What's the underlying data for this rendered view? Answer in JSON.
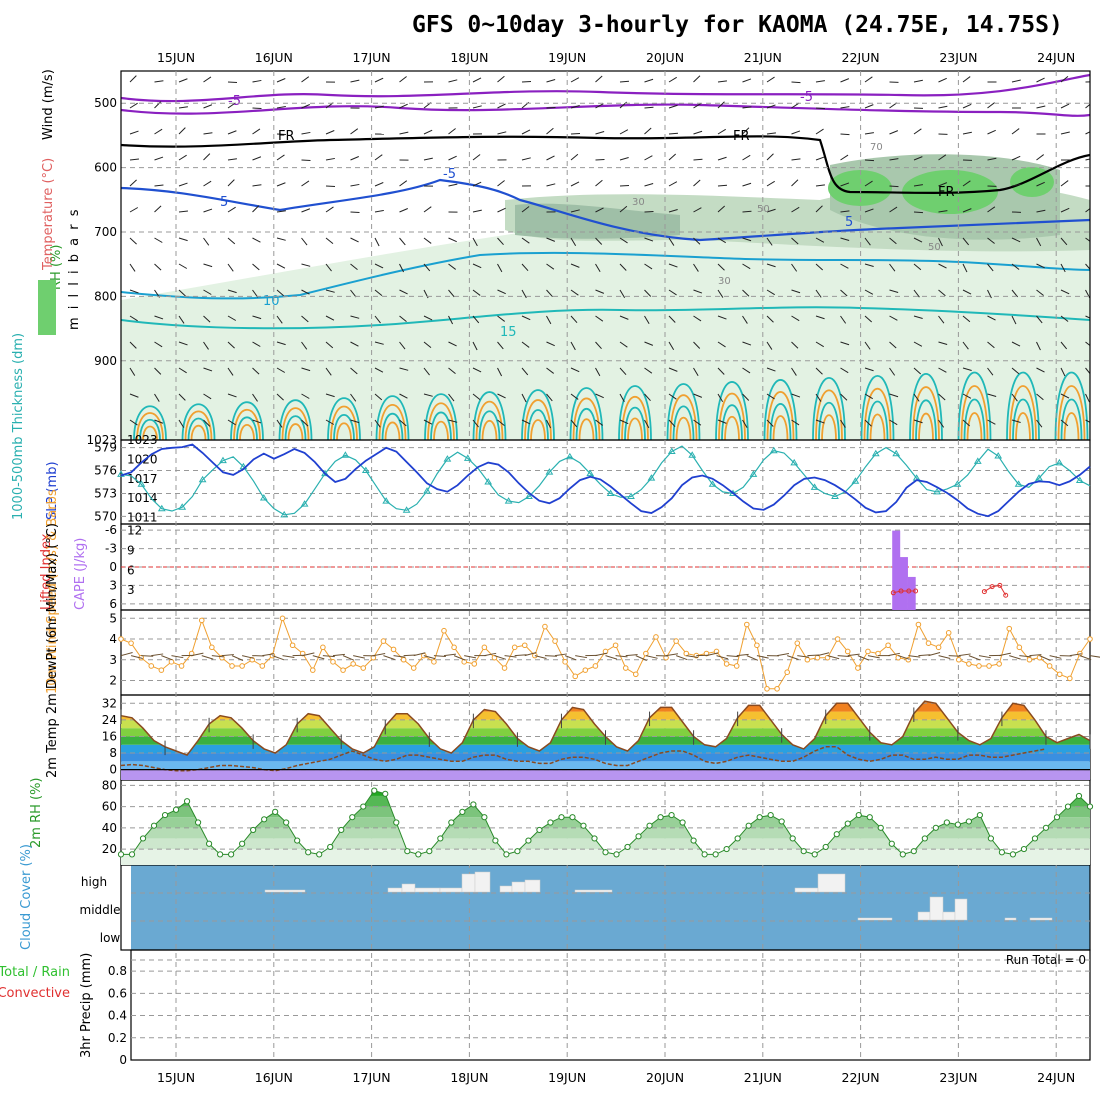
{
  "title": "GFS 0~10day 3-hourly for KAOMA (24.75E, 14.75S)",
  "colors": {
    "temperature": "#e05050",
    "wind": "#000000",
    "rh_label": "#2a9a2a",
    "thickness": "#2ab0b0",
    "slp": "#2040d0",
    "lifted_index": "#e03030",
    "cape": "#b070f0",
    "wind10m": "#f0a030",
    "temp_band": "#f5b030",
    "cloud_bg": "#6aa9d2",
    "precip_total": "#30c030",
    "precip_conv": "#e03030"
  },
  "chart_data": [
    {
      "type": "heatmap",
      "name": "upper",
      "x_dates": [
        "15JUN",
        "16JUN",
        "17JUN",
        "18JUN",
        "19JUN",
        "20JUN",
        "21JUN",
        "22JUN",
        "23JUN",
        "24JUN"
      ],
      "y_ticks": [
        "500",
        "600",
        "700",
        "800",
        "900",
        "1023"
      ],
      "ylabel": "(millibars)",
      "axis_labels": {
        "wind": "Wind (m/s)",
        "temperature": "Temperature (°C)",
        "rh": "RH (%)",
        "pressure": "m i l l i b a r s"
      },
      "isotherm_labels": [
        "-5",
        "-5",
        "FR",
        "FR",
        "FR",
        "5",
        "-5",
        "5",
        "10",
        "15"
      ],
      "rh_labels": [
        "30",
        "50",
        "30",
        "50",
        "70"
      ]
    },
    {
      "type": "line",
      "name": "thickness_slp",
      "y_left_ticks": [
        "579",
        "576",
        "573",
        "570"
      ],
      "y_right_ticks": [
        "1023",
        "1020",
        "1017",
        "1014",
        "1011"
      ],
      "left_label": "1000-500mb Thickness (dm)",
      "right_label": "SLP (mb)",
      "thickness": [
        575.5,
        575.3,
        574.2,
        572.3,
        571.0,
        570.7,
        571.2,
        572.6,
        574.8,
        576.1,
        577.3,
        577.8,
        576.5,
        574.6,
        572.4,
        571.0,
        570.2,
        570.4,
        571.6,
        573.6,
        575.6,
        577.2,
        578.0,
        577.4,
        576.0,
        574.0,
        572.0,
        571.0,
        570.8,
        571.6,
        573.3,
        575.6,
        577.5,
        578.4,
        577.6,
        576.3,
        574.5,
        572.8,
        572.0,
        571.8,
        572.6,
        574.0,
        575.8,
        577.2,
        577.8,
        577.0,
        575.6,
        574.2,
        573.0,
        572.5,
        572.6,
        573.5,
        575.0,
        577.0,
        578.5,
        579.2,
        578.0,
        576.0,
        574.2,
        573.2,
        573.0,
        573.8,
        575.5,
        577.4,
        578.6,
        578.3,
        577.0,
        575.4,
        573.8,
        573.0,
        572.6,
        573.2,
        574.6,
        576.5,
        578.2,
        579.0,
        578.2,
        576.7,
        575.0,
        573.5,
        573.2,
        573.6,
        574.2,
        575.4,
        577.2,
        578.8,
        577.9,
        575.9,
        574.2,
        573.8,
        575.0,
        576.5,
        577.0,
        576.0,
        574.7,
        574.0
      ],
      "slp": [
        1017.5,
        1018.0,
        1019.5,
        1020.8,
        1021.6,
        1021.8,
        1021.9,
        1022.3,
        1021.0,
        1019.5,
        1018.0,
        1017.6,
        1018.5,
        1020.0,
        1020.9,
        1020.1,
        1020.8,
        1021.6,
        1021.0,
        1019.6,
        1017.8,
        1016.5,
        1017.0,
        1018.5,
        1019.8,
        1020.8,
        1021.8,
        1021.2,
        1019.6,
        1018.0,
        1016.3,
        1015.4,
        1015.0,
        1016.0,
        1017.5,
        1018.8,
        1019.5,
        1019.2,
        1018.0,
        1016.3,
        1014.8,
        1013.6,
        1013.2,
        1014.0,
        1015.5,
        1016.8,
        1017.3,
        1016.9,
        1015.8,
        1014.5,
        1013.2,
        1012.0,
        1011.7,
        1012.6,
        1014.0,
        1016.0,
        1017.2,
        1017.5,
        1017.0,
        1016.0,
        1014.8,
        1013.5,
        1012.4,
        1012.2,
        1013.0,
        1014.4,
        1016.0,
        1017.0,
        1017.2,
        1016.8,
        1016.0,
        1015.0,
        1013.8,
        1012.5,
        1011.8,
        1012.0,
        1013.4,
        1015.6,
        1016.8,
        1016.5,
        1015.7,
        1014.8,
        1013.7,
        1012.4,
        1011.6,
        1011.2,
        1012.0,
        1013.5,
        1015.0,
        1016.2,
        1016.6,
        1016.5,
        1016.0,
        1016.6,
        1017.6,
        1018.9
      ]
    },
    {
      "type": "bar",
      "name": "cape_li",
      "y_left_ticks": [
        "-6",
        "-3",
        "0",
        "3",
        "6"
      ],
      "y_right_ticks": [
        "12",
        "9",
        "6",
        "3"
      ],
      "left_label": "Lifted Index",
      "right_label": "CAPE (J/kg)",
      "cape": [
        {
          "x": 0.8,
          "v": 12
        },
        {
          "x": 0.808,
          "v": 8
        },
        {
          "x": 0.816,
          "v": 5
        }
      ],
      "li": [
        [
          0.797,
          4.2
        ],
        [
          0.805,
          3.9
        ],
        [
          0.813,
          3.9
        ],
        [
          0.82,
          3.9
        ],
        [
          0.891,
          4.0
        ],
        [
          0.899,
          3.2
        ],
        [
          0.907,
          3.0
        ],
        [
          0.913,
          4.6
        ]
      ]
    },
    {
      "type": "line",
      "name": "wind10m",
      "y_ticks": [
        "5",
        "4",
        "3",
        "2"
      ],
      "ylabel": "10m Wind Speed (m/s) & Barbs",
      "speed": [
        4.0,
        3.8,
        3.1,
        2.7,
        2.5,
        2.9,
        2.7,
        3.3,
        4.9,
        3.6,
        3.1,
        2.7,
        2.7,
        3.0,
        2.7,
        3.2,
        5.0,
        3.7,
        3.3,
        2.5,
        3.6,
        2.9,
        2.5,
        2.8,
        2.6,
        3.1,
        3.9,
        3.5,
        3.0,
        2.6,
        3.2,
        2.9,
        4.4,
        3.6,
        2.9,
        2.8,
        3.6,
        3.1,
        2.6,
        3.6,
        3.7,
        3.2,
        4.6,
        3.9,
        2.9,
        2.2,
        2.5,
        2.7,
        3.4,
        3.7,
        2.6,
        2.3,
        3.3,
        4.1,
        3.1,
        3.9,
        3.3,
        3.2,
        3.3,
        3.4,
        2.8,
        2.7,
        4.7,
        3.7,
        1.6,
        1.6,
        2.4,
        3.8,
        3.0,
        3.1,
        3.1,
        4.0,
        3.4,
        2.6,
        3.4,
        3.3,
        3.7,
        3.1,
        3.0,
        4.7,
        3.8,
        3.6,
        4.3,
        3.0,
        2.8,
        2.7,
        2.7,
        2.8,
        4.5,
        3.6,
        3.0,
        3.1,
        2.7,
        2.3,
        2.1,
        3.3,
        4.0
      ]
    },
    {
      "type": "area",
      "name": "temp2m",
      "y_ticks": [
        "32",
        "24",
        "16",
        "8",
        "0"
      ],
      "ylabel": "2m Temp 2m DewPt (6hr Min/Max) (°C)",
      "temp": [
        26,
        25,
        20,
        14,
        11,
        9,
        7,
        14,
        22,
        26,
        25,
        20,
        14,
        10,
        8,
        12,
        22,
        27,
        26,
        20,
        14,
        10,
        8,
        11,
        21,
        27,
        27,
        22,
        15,
        10,
        8,
        13,
        24,
        29,
        28,
        22,
        15,
        11,
        9,
        13,
        24,
        30,
        29,
        22,
        16,
        11,
        9,
        14,
        25,
        30,
        30,
        23,
        16,
        12,
        11,
        15,
        25,
        31,
        31,
        24,
        17,
        12,
        10,
        15,
        26,
        32,
        32,
        25,
        18,
        13,
        12,
        16,
        27,
        33,
        32,
        25,
        18,
        14,
        12,
        15,
        25,
        32,
        31,
        24,
        16,
        13,
        15,
        17,
        14
      ],
      "dewpt": [
        2,
        2.5,
        2,
        1,
        0,
        -0.5,
        -0.5,
        0,
        1,
        2,
        2,
        1.5,
        1,
        0,
        -0.5,
        0.5,
        2,
        3,
        4,
        5,
        7,
        9,
        7,
        5,
        4,
        5,
        7,
        7,
        6,
        5,
        4,
        4,
        6,
        7,
        7,
        5,
        4,
        4,
        3,
        3,
        5,
        6,
        6,
        5,
        3,
        2,
        2,
        4,
        6,
        8,
        9,
        9,
        7,
        4,
        3,
        4,
        6,
        7,
        6,
        5,
        4,
        4,
        6,
        9,
        11,
        11,
        7,
        5,
        4,
        5,
        7,
        7,
        5,
        5,
        6,
        5,
        5,
        7,
        7,
        6,
        6,
        7,
        8,
        9,
        10
      ]
    },
    {
      "type": "area",
      "name": "rh2m",
      "y_ticks": [
        "80",
        "60",
        "40",
        "20"
      ],
      "ylabel": "2m RH (%)",
      "rh": [
        15,
        15,
        30,
        42,
        52,
        57,
        65,
        45,
        25,
        15,
        15,
        25,
        38,
        48,
        55,
        45,
        28,
        17,
        15,
        22,
        38,
        50,
        60,
        75,
        72,
        45,
        18,
        15,
        18,
        30,
        45,
        55,
        62,
        50,
        28,
        15,
        18,
        28,
        38,
        45,
        50,
        50,
        42,
        30,
        17,
        15,
        22,
        32,
        42,
        50,
        52,
        45,
        28,
        15,
        15,
        20,
        30,
        42,
        50,
        52,
        46,
        30,
        18,
        15,
        22,
        34,
        44,
        52,
        50,
        40,
        25,
        15,
        18,
        30,
        40,
        45,
        43,
        46,
        52,
        30,
        17,
        15,
        20,
        30,
        40,
        50,
        60,
        70,
        60
      ]
    },
    {
      "type": "bar",
      "name": "cloud",
      "levels": [
        "high",
        "middle",
        "low"
      ],
      "ylabel": "Cloud Cover (%)"
    },
    {
      "type": "bar",
      "name": "precip",
      "y_ticks": [
        "0.8",
        "0.6",
        "0.4",
        "0.2",
        "0"
      ],
      "ylabel": "3hr Precip (mm)",
      "legend_total": "Total / Rain",
      "legend_conv": "Convective",
      "run_total": "Run Total = 0"
    }
  ]
}
